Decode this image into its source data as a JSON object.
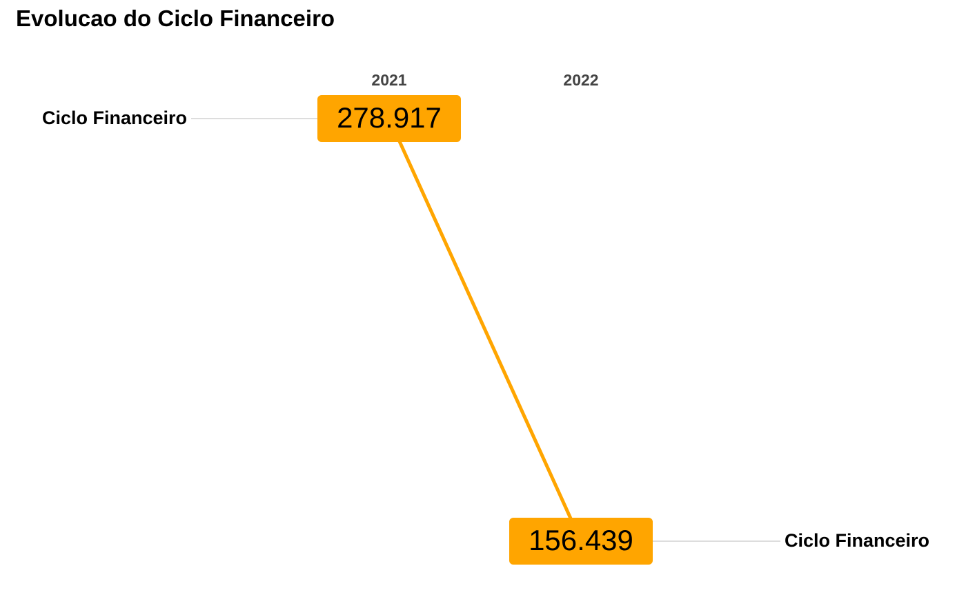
{
  "chart_data": {
    "type": "line",
    "subtype": "slope",
    "title": "Evolucao do Ciclo Financeiro",
    "x": [
      "2021",
      "2022"
    ],
    "series": [
      {
        "name": "Ciclo Financeiro",
        "values": [
          278.917,
          156.439
        ],
        "value_labels": [
          "278.917",
          "156.439"
        ],
        "color": "#FFA500"
      }
    ],
    "ylim": [
      156.439,
      278.917
    ],
    "grid": false,
    "legend": "none",
    "label_color": "#000000",
    "tick_label_color": "#444444",
    "leader_color": "#DDDDDD"
  }
}
